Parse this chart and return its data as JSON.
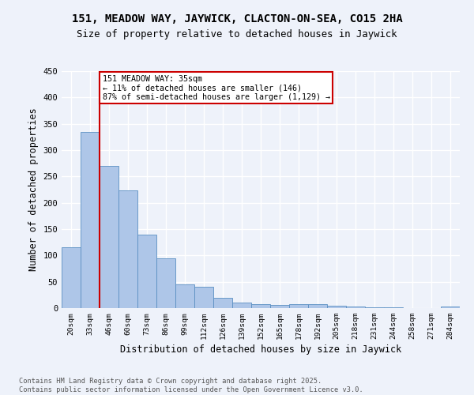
{
  "title": "151, MEADOW WAY, JAYWICK, CLACTON-ON-SEA, CO15 2HA",
  "subtitle": "Size of property relative to detached houses in Jaywick",
  "xlabel": "Distribution of detached houses by size in Jaywick",
  "ylabel": "Number of detached properties",
  "bar_labels": [
    "20sqm",
    "33sqm",
    "46sqm",
    "60sqm",
    "73sqm",
    "86sqm",
    "99sqm",
    "112sqm",
    "126sqm",
    "139sqm",
    "152sqm",
    "165sqm",
    "178sqm",
    "192sqm",
    "205sqm",
    "218sqm",
    "231sqm",
    "244sqm",
    "258sqm",
    "271sqm",
    "284sqm"
  ],
  "bar_values": [
    116,
    335,
    270,
    224,
    140,
    94,
    45,
    40,
    19,
    11,
    7,
    6,
    7,
    7,
    4,
    3,
    2,
    1,
    0,
    0,
    3
  ],
  "bar_color": "#aec6e8",
  "bar_edgecolor": "#5a8fc2",
  "vline_x_index": 1.5,
  "vline_color": "#cc0000",
  "annotation_text": "151 MEADOW WAY: 35sqm\n← 11% of detached houses are smaller (146)\n87% of semi-detached houses are larger (1,129) →",
  "annotation_box_color": "#ffffff",
  "annotation_box_edgecolor": "#cc0000",
  "ylim": [
    0,
    450
  ],
  "yticks": [
    0,
    50,
    100,
    150,
    200,
    250,
    300,
    350,
    400,
    450
  ],
  "background_color": "#eef2fa",
  "grid_color": "#ffffff",
  "footer_line1": "Contains HM Land Registry data © Crown copyright and database right 2025.",
  "footer_line2": "Contains public sector information licensed under the Open Government Licence v3.0."
}
